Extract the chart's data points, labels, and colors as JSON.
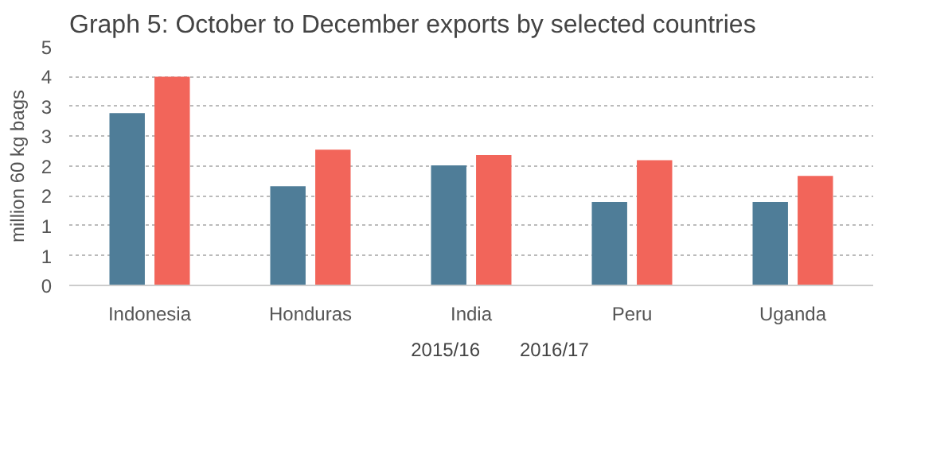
{
  "chart_data": {
    "type": "bar",
    "title": "Graph 5: October to December exports by selected countries",
    "ylabel": "million 60 kg bags",
    "categories": [
      "Indonesia",
      "Honduras",
      "India",
      "Peru",
      "Uganda"
    ],
    "series": [
      {
        "name": "2015/16",
        "color": "#4f7d98",
        "values": [
          3.3,
          1.9,
          2.3,
          1.6,
          1.6
        ]
      },
      {
        "name": "2016/17",
        "color": "#f2655a",
        "values": [
          4.0,
          2.6,
          2.5,
          2.4,
          2.1
        ]
      }
    ],
    "ylim": [
      0,
      4.57
    ],
    "yticks": [
      0,
      {
        "value": 0.571,
        "label": "1"
      },
      {
        "value": 1.143,
        "label": "1"
      },
      {
        "value": 1.714,
        "label": "2"
      },
      {
        "value": 2.286,
        "label": "2"
      },
      {
        "value": 2.857,
        "label": "3"
      },
      {
        "value": 3.429,
        "label": "3"
      },
      4,
      {
        "value": 4.57,
        "label": "5"
      }
    ],
    "grid": "y",
    "legend": "bottom"
  }
}
